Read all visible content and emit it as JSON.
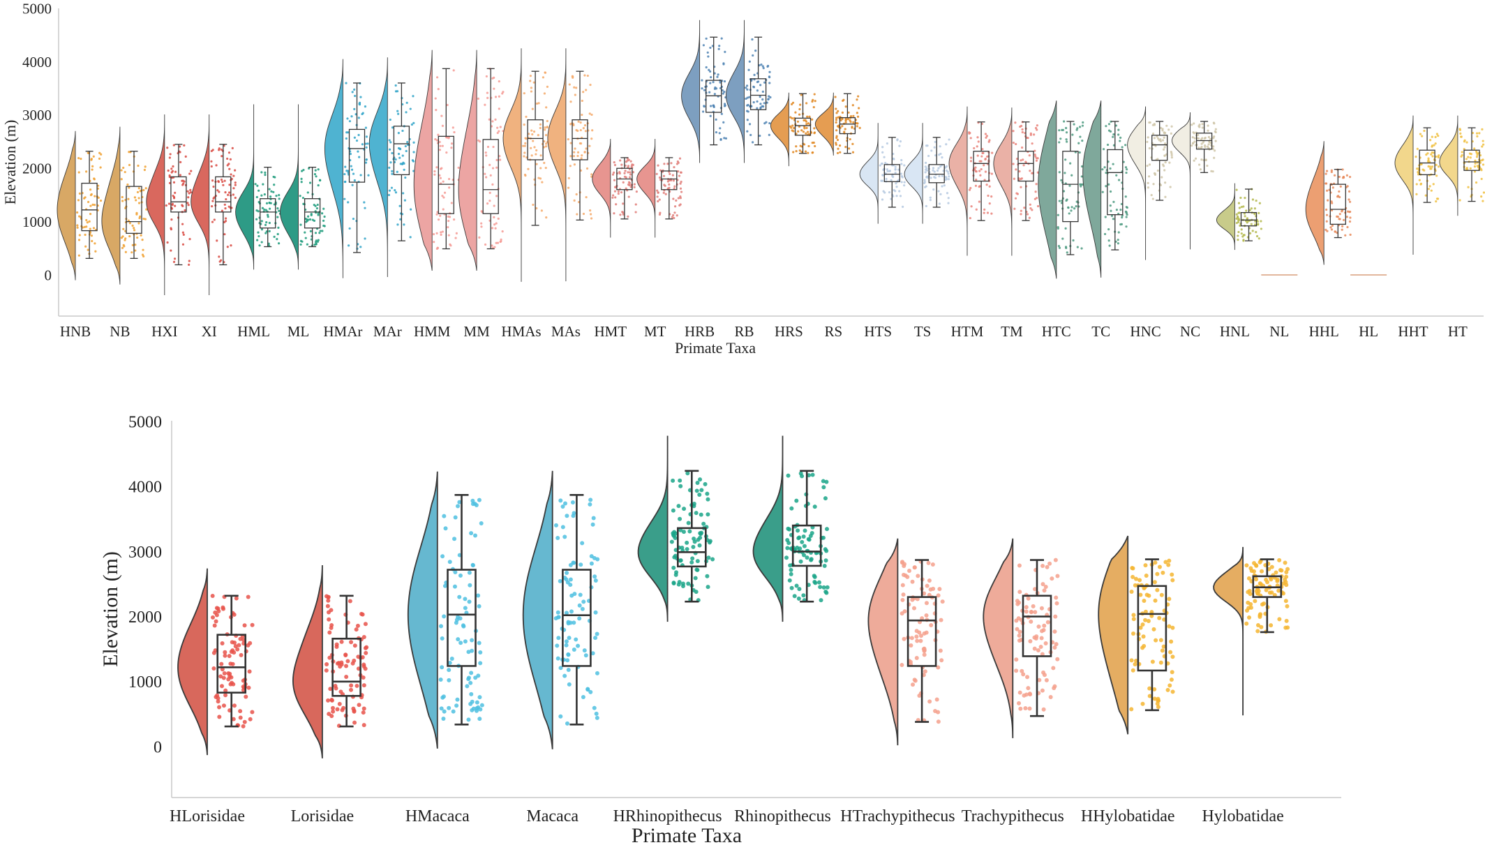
{
  "chart_data": [
    {
      "type": "raincloud",
      "xlabel": "Primate Taxa",
      "ylabel": "Elevation (m)",
      "ylim": [
        -800,
        5000
      ],
      "yticks": [
        0,
        1000,
        2000,
        3000,
        4000,
        5000
      ],
      "grid": false,
      "categories": [
        "HNB",
        "NB",
        "HXI",
        "XI",
        "HML",
        "ML",
        "HMAr",
        "MAr",
        "HMM",
        "MM",
        "HMAs",
        "MAs",
        "HMT",
        "MT",
        "HRB",
        "RB",
        "HRS",
        "RS",
        "HTS",
        "TS",
        "HTM",
        "TM",
        "HTC",
        "TC",
        "HNC",
        "NC",
        "HNL",
        "NL",
        "HHL",
        "HL",
        "HHT",
        "HT"
      ],
      "colors": [
        "#d8a865",
        "#d8a865",
        "#d9685e",
        "#d9685e",
        "#2e9b86",
        "#2e9b86",
        "#4fb3d1",
        "#4fb3d1",
        "#eca5a3",
        "#eca5a3",
        "#f0b27f",
        "#f0b27f",
        "#e79590",
        "#e79590",
        "#7d9fc0",
        "#7d9fc0",
        "#e59d52",
        "#e59d52",
        "#d9e6f4",
        "#d9e6f4",
        "#eab1a6",
        "#eab1a6",
        "#7fa89b",
        "#7fa89b",
        "#f1eee3",
        "#f1eee3",
        "#c8cb8a",
        "#c8cb8a",
        "#ec9f72",
        "#ec9f72",
        "#f2d78c",
        "#f2d78c"
      ],
      "point_colors": [
        "#f0a030",
        "#f0a030",
        "#d8483f",
        "#d8483f",
        "#1b9a7a",
        "#1b9a7a",
        "#2fa3c8",
        "#2fa3c8",
        "#f49a94",
        "#f49a94",
        "#f5a96a",
        "#f5a96a",
        "#e07c78",
        "#e07c78",
        "#4d83b3",
        "#4d83b3",
        "#e0861f",
        "#e0861f",
        "#b5c9e0",
        "#b5c9e0",
        "#e9827a",
        "#e9827a",
        "#4c9a80",
        "#4c9a80",
        "#cfc5a8",
        "#cfc5a8",
        "#b4b84e",
        "#b4b84e",
        "#e88a5a",
        "#e88a5a",
        "#f0c040",
        "#f0c040"
      ],
      "boxes": [
        {
          "q1": 830,
          "median": 1220,
          "q3": 1720,
          "whislo": 310,
          "whishi": 2320,
          "min": -100,
          "max": 2700
        },
        {
          "q1": 780,
          "median": 1000,
          "q3": 1660,
          "whislo": 310,
          "whishi": 2320,
          "min": -180,
          "max": 2780
        },
        {
          "q1": 1180,
          "median": 1370,
          "q3": 1840,
          "whislo": 190,
          "whishi": 2450,
          "min": -380,
          "max": 3010
        },
        {
          "q1": 1180,
          "median": 1370,
          "q3": 1840,
          "whislo": 190,
          "whishi": 2450,
          "min": -380,
          "max": 3010
        },
        {
          "q1": 880,
          "median": 1180,
          "q3": 1430,
          "whislo": 530,
          "whishi": 2020,
          "min": 100,
          "max": 3200
        },
        {
          "q1": 880,
          "median": 1180,
          "q3": 1430,
          "whislo": 530,
          "whishi": 2020,
          "min": 100,
          "max": 3200
        },
        {
          "q1": 1740,
          "median": 2370,
          "q3": 2730,
          "whislo": 420,
          "whishi": 3600,
          "min": -60,
          "max": 4050
        },
        {
          "q1": 1880,
          "median": 2460,
          "q3": 2790,
          "whislo": 640,
          "whishi": 3600,
          "min": -40,
          "max": 4080
        },
        {
          "q1": 1150,
          "median": 1700,
          "q3": 2600,
          "whislo": 490,
          "whishi": 3870,
          "min": 80,
          "max": 4220
        },
        {
          "q1": 1150,
          "median": 1600,
          "q3": 2540,
          "whislo": 490,
          "whishi": 3870,
          "min": 80,
          "max": 4220
        },
        {
          "q1": 2160,
          "median": 2560,
          "q3": 2910,
          "whislo": 930,
          "whishi": 3820,
          "min": -130,
          "max": 4250
        },
        {
          "q1": 2160,
          "median": 2560,
          "q3": 2910,
          "whislo": 1030,
          "whishi": 3820,
          "min": -120,
          "max": 4250
        },
        {
          "q1": 1600,
          "median": 1800,
          "q3": 2000,
          "whislo": 1050,
          "whishi": 2200,
          "min": 700,
          "max": 2550
        },
        {
          "q1": 1600,
          "median": 1800,
          "q3": 1950,
          "whislo": 1050,
          "whishi": 2200,
          "min": 700,
          "max": 2550
        },
        {
          "q1": 3050,
          "median": 3360,
          "q3": 3650,
          "whislo": 2440,
          "whishi": 4460,
          "min": 2100,
          "max": 4780
        },
        {
          "q1": 3100,
          "median": 3370,
          "q3": 3680,
          "whislo": 2440,
          "whishi": 4460,
          "min": 2100,
          "max": 4780
        },
        {
          "q1": 2620,
          "median": 2800,
          "q3": 2940,
          "whislo": 2280,
          "whishi": 3400,
          "min": 2040,
          "max": 3420
        },
        {
          "q1": 2650,
          "median": 2830,
          "q3": 2950,
          "whislo": 2280,
          "whishi": 3400,
          "min": 2240,
          "max": 3420
        },
        {
          "q1": 1750,
          "median": 1890,
          "q3": 2070,
          "whislo": 1270,
          "whishi": 2580,
          "min": 960,
          "max": 2850
        },
        {
          "q1": 1730,
          "median": 1890,
          "q3": 2070,
          "whislo": 1270,
          "whishi": 2580,
          "min": 960,
          "max": 2850
        },
        {
          "q1": 1760,
          "median": 2090,
          "q3": 2320,
          "whislo": 1020,
          "whishi": 2870,
          "min": 360,
          "max": 3160
        },
        {
          "q1": 1760,
          "median": 2090,
          "q3": 2320,
          "whislo": 1020,
          "whishi": 2870,
          "min": 360,
          "max": 3140
        },
        {
          "q1": 1000,
          "median": 1700,
          "q3": 2320,
          "whislo": 380,
          "whishi": 2880,
          "min": -70,
          "max": 3270
        },
        {
          "q1": 1130,
          "median": 1920,
          "q3": 2350,
          "whislo": 470,
          "whishi": 2880,
          "min": -50,
          "max": 3270
        },
        {
          "q1": 2150,
          "median": 2440,
          "q3": 2620,
          "whislo": 1400,
          "whishi": 2880,
          "min": 280,
          "max": 3160
        },
        {
          "q1": 2360,
          "median": 2520,
          "q3": 2660,
          "whislo": 1920,
          "whishi": 2880,
          "min": 480,
          "max": 3050
        },
        {
          "q1": 920,
          "median": 1030,
          "q3": 1170,
          "whislo": 640,
          "whishi": 1610,
          "min": 470,
          "max": 1720
        },
        {
          "q1": 0,
          "median": 0,
          "q3": 0,
          "whislo": 0,
          "whishi": 0,
          "min": 0,
          "max": 0
        },
        {
          "q1": 950,
          "median": 1230,
          "q3": 1700,
          "whislo": 700,
          "whishi": 1980,
          "min": 190,
          "max": 2510
        },
        {
          "q1": 0,
          "median": 0,
          "q3": 0,
          "whislo": 0,
          "whishi": 0,
          "min": 0,
          "max": 0
        },
        {
          "q1": 1880,
          "median": 2100,
          "q3": 2340,
          "whislo": 1360,
          "whishi": 2760,
          "min": 380,
          "max": 2990
        },
        {
          "q1": 1960,
          "median": 2120,
          "q3": 2340,
          "whislo": 1380,
          "whishi": 2760,
          "min": 1110,
          "max": 2990
        }
      ]
    },
    {
      "type": "raincloud",
      "xlabel": "Primate Taxa",
      "ylabel": "Elevation (m)",
      "ylim": [
        -800,
        5000
      ],
      "yticks": [
        0,
        1000,
        2000,
        3000,
        4000,
        5000
      ],
      "grid": false,
      "categories": [
        "HLorisidae",
        "Lorisidae",
        "HMacaca",
        "Macaca",
        "HRhinopithecus",
        "Rhinopithecus",
        "HTrachypithecus",
        "Trachypithecus",
        "HHylobatidae",
        "Hylobatidae"
      ],
      "colors": [
        "#d8685c",
        "#d8685c",
        "#66b8d0",
        "#66b8d0",
        "#3a9e8a",
        "#3a9e8a",
        "#eeab9a",
        "#eeab9a",
        "#e5ad62",
        "#e5ad62"
      ],
      "point_colors": [
        "#e8524a",
        "#e8524a",
        "#4dc0e0",
        "#4dc0e0",
        "#1aa588",
        "#1aa588",
        "#f5a08c",
        "#f5a08c",
        "#f5b530",
        "#f5b530"
      ],
      "boxes": [
        {
          "q1": 830,
          "median": 1220,
          "q3": 1720,
          "whislo": 310,
          "whishi": 2320,
          "min": -130,
          "max": 2740
        },
        {
          "q1": 780,
          "median": 1000,
          "q3": 1660,
          "whislo": 310,
          "whishi": 2320,
          "min": -180,
          "max": 2790
        },
        {
          "q1": 1240,
          "median": 2030,
          "q3": 2720,
          "whislo": 340,
          "whishi": 3870,
          "min": -30,
          "max": 4230
        },
        {
          "q1": 1240,
          "median": 2020,
          "q3": 2720,
          "whislo": 340,
          "whishi": 3870,
          "min": -40,
          "max": 4240
        },
        {
          "q1": 2770,
          "median": 2990,
          "q3": 3360,
          "whislo": 2230,
          "whishi": 4240,
          "min": 1920,
          "max": 4780
        },
        {
          "q1": 2780,
          "median": 3000,
          "q3": 3400,
          "whislo": 2230,
          "whishi": 4240,
          "min": 1920,
          "max": 4780
        },
        {
          "q1": 1240,
          "median": 1940,
          "q3": 2300,
          "whislo": 380,
          "whishi": 2870,
          "min": 20,
          "max": 3200
        },
        {
          "q1": 1390,
          "median": 2000,
          "q3": 2320,
          "whislo": 470,
          "whishi": 2870,
          "min": 130,
          "max": 3200
        },
        {
          "q1": 1170,
          "median": 2040,
          "q3": 2470,
          "whislo": 560,
          "whishi": 2880,
          "min": 190,
          "max": 3240
        },
        {
          "q1": 2300,
          "median": 2450,
          "q3": 2620,
          "whislo": 1760,
          "whishi": 2880,
          "min": 480,
          "max": 3070
        }
      ]
    }
  ]
}
